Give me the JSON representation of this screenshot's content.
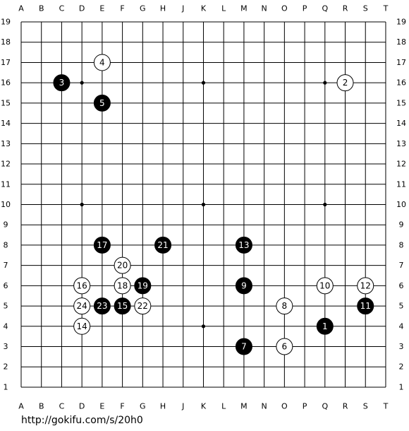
{
  "board": {
    "columns": [
      "A",
      "B",
      "C",
      "D",
      "E",
      "F",
      "G",
      "H",
      "J",
      "K",
      "L",
      "M",
      "N",
      "O",
      "P",
      "Q",
      "R",
      "S",
      "T"
    ],
    "rows": [
      19,
      18,
      17,
      16,
      15,
      14,
      13,
      12,
      11,
      10,
      9,
      8,
      7,
      6,
      5,
      4,
      3,
      2,
      1
    ],
    "stones": [
      {
        "move": 1,
        "color": "black",
        "col": "Q",
        "row": 4
      },
      {
        "move": 2,
        "color": "white",
        "col": "R",
        "row": 16
      },
      {
        "move": 3,
        "color": "black",
        "col": "C",
        "row": 16
      },
      {
        "move": 4,
        "color": "white",
        "col": "E",
        "row": 17
      },
      {
        "move": 5,
        "color": "black",
        "col": "E",
        "row": 15
      },
      {
        "move": 6,
        "color": "white",
        "col": "O",
        "row": 3
      },
      {
        "move": 7,
        "color": "black",
        "col": "M",
        "row": 3
      },
      {
        "move": 8,
        "color": "white",
        "col": "O",
        "row": 5
      },
      {
        "move": 9,
        "color": "black",
        "col": "M",
        "row": 6
      },
      {
        "move": 10,
        "color": "white",
        "col": "Q",
        "row": 6
      },
      {
        "move": 11,
        "color": "black",
        "col": "S",
        "row": 5
      },
      {
        "move": 12,
        "color": "white",
        "col": "S",
        "row": 6
      },
      {
        "move": 13,
        "color": "black",
        "col": "M",
        "row": 8
      },
      {
        "move": 14,
        "color": "white",
        "col": "D",
        "row": 4
      },
      {
        "move": 15,
        "color": "black",
        "col": "F",
        "row": 5
      },
      {
        "move": 16,
        "color": "white",
        "col": "D",
        "row": 6
      },
      {
        "move": 17,
        "color": "black",
        "col": "E",
        "row": 8
      },
      {
        "move": 18,
        "color": "white",
        "col": "F",
        "row": 6
      },
      {
        "move": 19,
        "color": "black",
        "col": "G",
        "row": 6
      },
      {
        "move": 20,
        "color": "white",
        "col": "F",
        "row": 7
      },
      {
        "move": 21,
        "color": "black",
        "col": "H",
        "row": 8
      },
      {
        "move": 22,
        "color": "white",
        "col": "G",
        "row": 5
      },
      {
        "move": 23,
        "color": "black",
        "col": "E",
        "row": 5
      },
      {
        "move": 24,
        "color": "white",
        "col": "D",
        "row": 5
      }
    ]
  },
  "footer": {
    "url": "http://gokifu.com/s/20h0"
  }
}
